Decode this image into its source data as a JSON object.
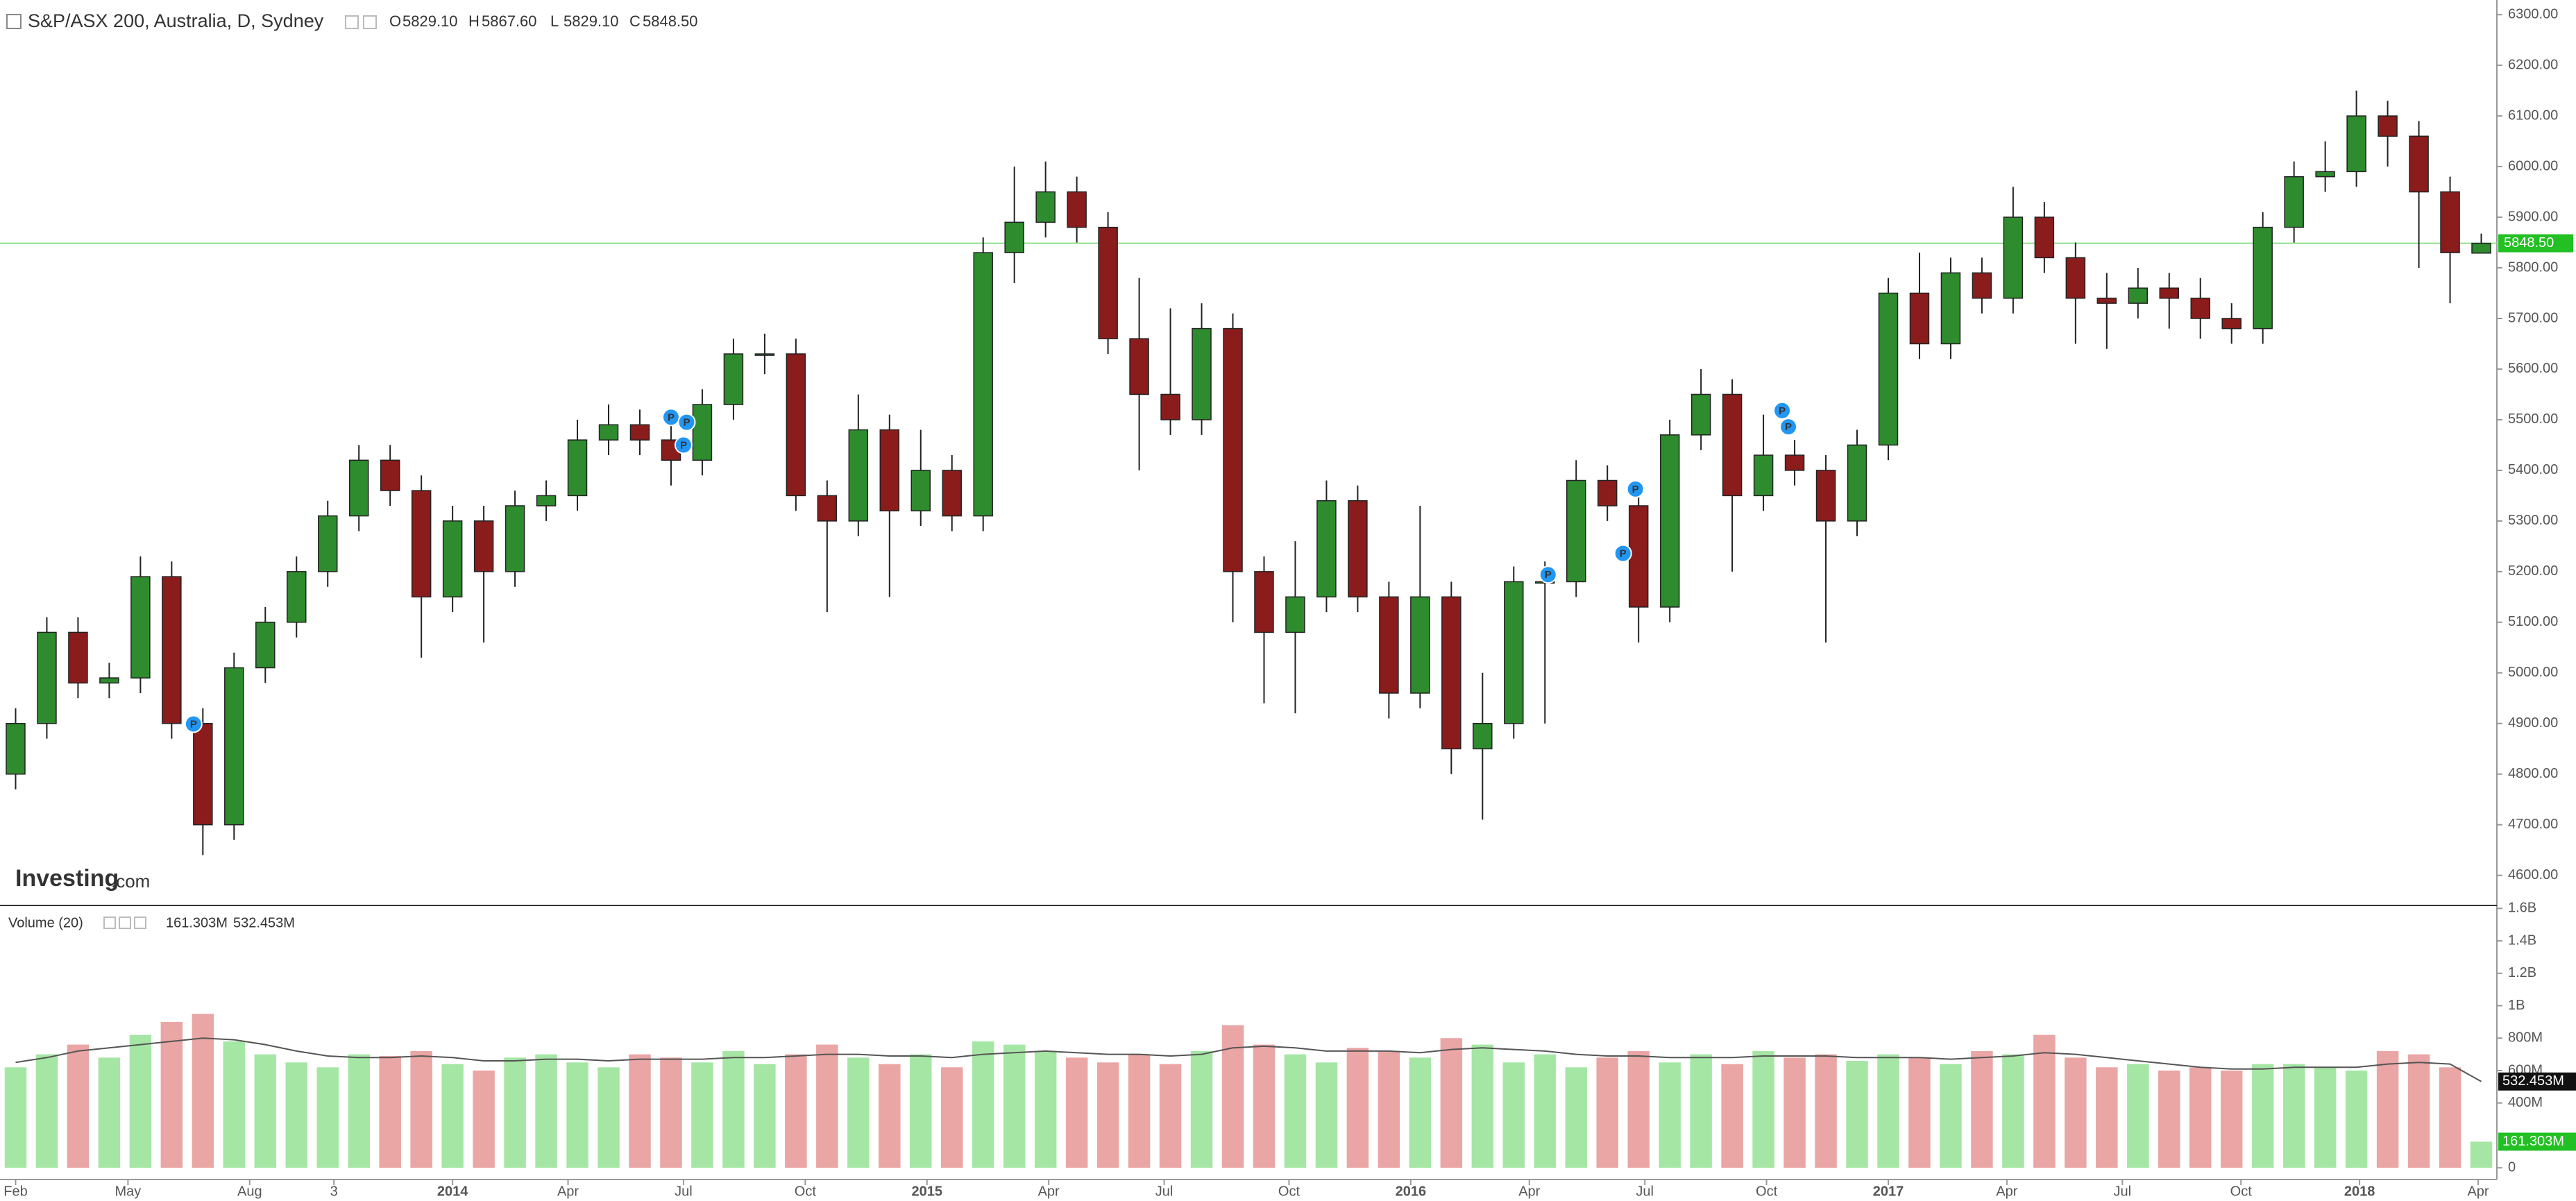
{
  "header": {
    "title": "S&P/ASX 200, Australia, D, Sydney",
    "ohlc": [
      {
        "label": "O",
        "value": "5829.10"
      },
      {
        "label": "H",
        "value": "5867.60"
      },
      {
        "label": "L",
        "value": "5829.10"
      },
      {
        "label": "C",
        "value": "5848.50"
      }
    ],
    "brand": "Investing",
    "brand_suffix": ".com"
  },
  "chart_data": [
    {
      "type": "candlestick",
      "xlim": [
        -0.5,
        79.5
      ],
      "xticks": [
        {
          "value": 0,
          "label": "Feb"
        },
        {
          "value": 3.6,
          "label": "May"
        },
        {
          "value": 7.5,
          "label": "Aug"
        },
        {
          "value": 10.2,
          "label": "3"
        },
        {
          "value": 14.0,
          "label": "2014"
        },
        {
          "value": 17.7,
          "label": "Apr"
        },
        {
          "value": 21.4,
          "label": "Jul"
        },
        {
          "value": 25.3,
          "label": "Oct"
        },
        {
          "value": 29.2,
          "label": "2015"
        },
        {
          "value": 33.1,
          "label": "Apr"
        },
        {
          "value": 36.8,
          "label": "Jul"
        },
        {
          "value": 40.8,
          "label": "Oct"
        },
        {
          "value": 44.7,
          "label": "2016"
        },
        {
          "value": 48.5,
          "label": "Apr"
        },
        {
          "value": 52.2,
          "label": "Jul"
        },
        {
          "value": 56.1,
          "label": "Oct"
        },
        {
          "value": 60.0,
          "label": "2017"
        },
        {
          "value": 63.8,
          "label": "Apr"
        },
        {
          "value": 67.5,
          "label": "Jul"
        },
        {
          "value": 71.3,
          "label": "Oct"
        },
        {
          "value": 75.1,
          "label": "2018"
        },
        {
          "value": 78.9,
          "label": "Apr"
        }
      ],
      "ylim": [
        4542,
        6329
      ],
      "yticks": [
        {
          "value": 4600,
          "label": "4600.00"
        },
        {
          "value": 4700,
          "label": "4700.00"
        },
        {
          "value": 4800,
          "label": "4800.00"
        },
        {
          "value": 4900,
          "label": "4900.00"
        },
        {
          "value": 5000,
          "label": "5000.00"
        },
        {
          "value": 5100,
          "label": "5100.00"
        },
        {
          "value": 5200,
          "label": "5200.00"
        },
        {
          "value": 5300,
          "label": "5300.00"
        },
        {
          "value": 5400,
          "label": "5400.00"
        },
        {
          "value": 5500,
          "label": "5500.00"
        },
        {
          "value": 5600,
          "label": "5600.00"
        },
        {
          "value": 5700,
          "label": "5700.00"
        },
        {
          "value": 5800,
          "label": "5800.00"
        },
        {
          "value": 5900,
          "label": "5900.00"
        },
        {
          "value": 6000,
          "label": "6000.00"
        },
        {
          "value": 6100,
          "label": "6100.00"
        },
        {
          "value": 6200,
          "label": "6200.00"
        },
        {
          "value": 6300,
          "label": "6300.00"
        }
      ],
      "up_color": "#2e8b2e",
      "down_color": "#8b1c1c",
      "open": [
        4800,
        4900,
        5080,
        4980,
        4990,
        5190,
        4900,
        4700,
        5010,
        5100,
        5200,
        5310,
        5420,
        5360,
        5150,
        5300,
        5200,
        5330,
        5350,
        5460,
        5490,
        5460,
        5420,
        5530,
        5630,
        5630,
        5350,
        5300,
        5480,
        5320,
        5400,
        5310,
        5830,
        5890,
        5950,
        5880,
        5660,
        5550,
        5500,
        5680,
        5200,
        5080,
        5150,
        5340,
        5150,
        4960,
        5150,
        4850,
        4900,
        5180,
        5180,
        5380,
        5330,
        5130,
        5470,
        5550,
        5350,
        5430,
        5400,
        5300,
        5450,
        5750,
        5650,
        5790,
        5740,
        5900,
        5820,
        5740,
        5730,
        5760,
        5740,
        5700,
        5680,
        5880,
        5980,
        5990,
        6100,
        6060,
        5950,
        5829.1
      ],
      "high": [
        4930,
        5110,
        5110,
        5020,
        5230,
        5220,
        4930,
        5040,
        5130,
        5230,
        5340,
        5450,
        5450,
        5390,
        5330,
        5330,
        5360,
        5380,
        5500,
        5530,
        5520,
        5490,
        5560,
        5660,
        5670,
        5660,
        5380,
        5550,
        5510,
        5480,
        5430,
        5860,
        6000,
        6010,
        5980,
        5910,
        5780,
        5720,
        5730,
        5710,
        5230,
        5260,
        5380,
        5370,
        5180,
        5330,
        5180,
        5000,
        5210,
        5220,
        5420,
        5410,
        5360,
        5500,
        5600,
        5580,
        5510,
        5460,
        5430,
        5480,
        5780,
        5830,
        5820,
        5820,
        5960,
        5930,
        5850,
        5790,
        5800,
        5790,
        5780,
        5730,
        5910,
        6010,
        6050,
        6150,
        6130,
        6090,
        5980,
        5867.6
      ],
      "low": [
        4770,
        4870,
        4950,
        4950,
        4960,
        4870,
        4640,
        4670,
        4980,
        5070,
        5170,
        5280,
        5330,
        5030,
        5120,
        5060,
        5170,
        5300,
        5320,
        5430,
        5430,
        5370,
        5390,
        5500,
        5590,
        5320,
        5120,
        5270,
        5150,
        5290,
        5280,
        5280,
        5770,
        5860,
        5850,
        5630,
        5400,
        5470,
        5470,
        5100,
        4940,
        4920,
        5120,
        5120,
        4910,
        4930,
        4800,
        4710,
        4870,
        4900,
        5150,
        5300,
        5060,
        5100,
        5440,
        5200,
        5320,
        5370,
        5060,
        5270,
        5420,
        5620,
        5620,
        5710,
        5710,
        5790,
        5650,
        5640,
        5700,
        5680,
        5660,
        5650,
        5650,
        5850,
        5950,
        5960,
        6000,
        5800,
        5730,
        5829.1
      ],
      "close": [
        4900,
        5080,
        4980,
        4990,
        5190,
        4900,
        4700,
        5010,
        5100,
        5200,
        5310,
        5420,
        5360,
        5150,
        5300,
        5200,
        5330,
        5350,
        5460,
        5490,
        5460,
        5420,
        5530,
        5630,
        5630,
        5350,
        5300,
        5480,
        5320,
        5400,
        5310,
        5830,
        5890,
        5950,
        5880,
        5660,
        5550,
        5500,
        5680,
        5200,
        5080,
        5150,
        5340,
        5150,
        4960,
        5150,
        4850,
        4900,
        5180,
        5180,
        5380,
        5330,
        5130,
        5470,
        5550,
        5350,
        5430,
        5400,
        5300,
        5450,
        5750,
        5650,
        5790,
        5740,
        5900,
        5820,
        5740,
        5730,
        5760,
        5740,
        5700,
        5680,
        5880,
        5980,
        5990,
        6100,
        6060,
        5950,
        5830,
        5848.5
      ],
      "last_price": 5848.5,
      "last_price_label": "5848.50",
      "last_line_color": "#8ee08e",
      "last_label_color": "#22c022",
      "markers": [
        {
          "label": "P",
          "x": 5.7,
          "price": 4899
        },
        {
          "label": "P",
          "x": 21.0,
          "price": 5505
        },
        {
          "label": "P",
          "x": 21.5,
          "price": 5495
        },
        {
          "label": "P",
          "x": 21.4,
          "price": 5450
        },
        {
          "label": "P",
          "x": 49.1,
          "price": 5194
        },
        {
          "label": "P",
          "x": 51.5,
          "price": 5236
        },
        {
          "label": "P",
          "x": 51.9,
          "price": 5363
        },
        {
          "label": "P",
          "x": 56.6,
          "price": 5518
        },
        {
          "label": "P",
          "x": 56.8,
          "price": 5486
        }
      ],
      "marker_color": "#2196f3"
    },
    {
      "type": "bar",
      "title": "Volume (20)",
      "xlim": [
        -0.5,
        79.5
      ],
      "ylim": [
        -72,
        1610
      ],
      "yticks": [
        0,
        {
          "value": 400,
          "label": "400M"
        },
        {
          "value": 600,
          "label": "600M"
        },
        {
          "value": 800,
          "label": "800M"
        },
        {
          "value": 1000,
          "label": "1B"
        },
        {
          "value": 1200,
          "label": "1.2B"
        },
        {
          "value": 1400,
          "label": "1.4B"
        },
        {
          "value": 1600,
          "label": "1.6B"
        }
      ],
      "up_color": "#a5e6a5",
      "down_color": "#eaa5a5",
      "line_color": "#555555",
      "values": [
        620,
        700,
        760,
        680,
        820,
        900,
        950,
        780,
        700,
        650,
        620,
        700,
        690,
        720,
        640,
        600,
        680,
        700,
        650,
        620,
        700,
        680,
        650,
        720,
        640,
        700,
        760,
        680,
        640,
        700,
        620,
        780,
        760,
        720,
        680,
        650,
        700,
        640,
        720,
        880,
        760,
        700,
        650,
        740,
        720,
        680,
        800,
        760,
        650,
        700,
        620,
        680,
        720,
        650,
        700,
        640,
        720,
        680,
        700,
        660,
        700,
        680,
        640,
        720,
        700,
        820,
        680,
        620,
        640,
        600,
        620,
        600,
        640,
        640,
        620,
        600,
        720,
        700,
        620,
        161.303
      ],
      "ma": [
        650,
        680,
        720,
        740,
        760,
        780,
        800,
        790,
        760,
        720,
        690,
        680,
        680,
        690,
        680,
        660,
        660,
        670,
        670,
        660,
        670,
        670,
        670,
        680,
        680,
        690,
        700,
        700,
        690,
        690,
        680,
        700,
        710,
        720,
        710,
        700,
        700,
        690,
        700,
        740,
        750,
        740,
        720,
        720,
        720,
        710,
        730,
        740,
        730,
        720,
        700,
        690,
        690,
        680,
        680,
        680,
        690,
        690,
        690,
        680,
        680,
        680,
        670,
        680,
        690,
        710,
        700,
        680,
        660,
        640,
        620,
        610,
        610,
        620,
        620,
        620,
        640,
        650,
        640,
        532.453
      ],
      "last_volume": 161.303,
      "last_volume_label": "161.303M",
      "last_ma": 532.453,
      "last_ma_label": "532.453M"
    }
  ]
}
